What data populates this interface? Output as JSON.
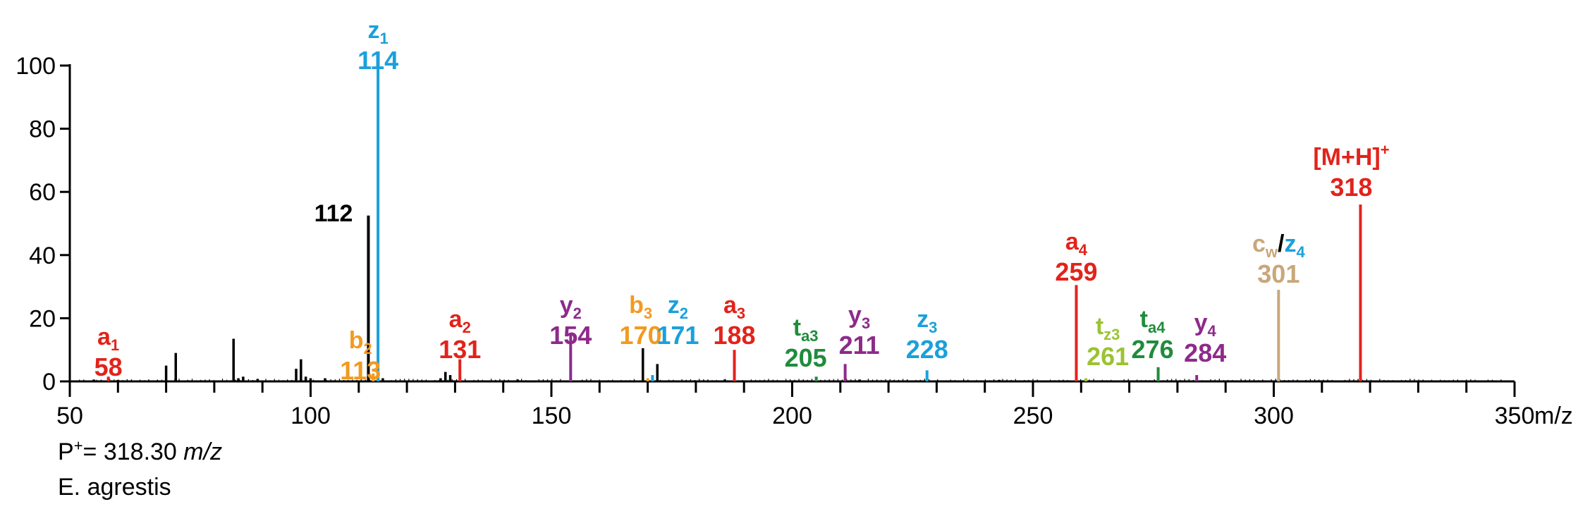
{
  "chart_data": {
    "type": "bar",
    "subtype": "mass-spectrum-stick",
    "xlim": [
      50,
      350
    ],
    "ylim": [
      0,
      100
    ],
    "x_ticks": [
      50,
      100,
      150,
      200,
      250,
      300,
      350
    ],
    "y_ticks": [
      0,
      20,
      40,
      60,
      80,
      100
    ],
    "x_unit": "m/z",
    "grid": false,
    "colors": {
      "a": "#e2231a",
      "b": "#f29a1f",
      "z": "#1ba0db",
      "y": "#8e2a8b",
      "t": "#1f8c3c",
      "tz": "#9cc233",
      "c": "#c8a77a",
      "unlabeled": "#000000"
    },
    "labeled_peaks": [
      {
        "mz": 58,
        "intensity": 1.5,
        "ion": "a",
        "sub": "1",
        "label": "58",
        "color": "#e2231a"
      },
      {
        "mz": 112,
        "intensity": 52.5,
        "ion": "",
        "sub": "",
        "label": "112",
        "color": "#000000"
      },
      {
        "mz": 113,
        "intensity": 2.5,
        "ion": "b",
        "sub": "2",
        "label": "113",
        "color": "#f29a1f"
      },
      {
        "mz": 114,
        "intensity": 100,
        "ion": "z",
        "sub": "1",
        "label": "114",
        "color": "#1ba0db"
      },
      {
        "mz": 131,
        "intensity": 7,
        "ion": "a",
        "sub": "2",
        "label": "131",
        "color": "#e2231a"
      },
      {
        "mz": 154,
        "intensity": 15,
        "ion": "y",
        "sub": "2",
        "label": "154",
        "color": "#8e2a8b"
      },
      {
        "mz": 170,
        "intensity": 1,
        "ion": "b",
        "sub": "3",
        "label": "170",
        "color": "#f29a1f"
      },
      {
        "mz": 171,
        "intensity": 2,
        "ion": "z",
        "sub": "2",
        "label": "171",
        "color": "#1ba0db"
      },
      {
        "mz": 188,
        "intensity": 10,
        "ion": "a",
        "sub": "3",
        "label": "188",
        "color": "#e2231a"
      },
      {
        "mz": 205,
        "intensity": 1.5,
        "ion": "t",
        "sub": "a3",
        "label": "205",
        "color": "#1f8c3c"
      },
      {
        "mz": 211,
        "intensity": 5.5,
        "ion": "y",
        "sub": "3",
        "label": "211",
        "color": "#8e2a8b"
      },
      {
        "mz": 228,
        "intensity": 3.5,
        "ion": "z",
        "sub": "3",
        "label": "228",
        "color": "#1ba0db"
      },
      {
        "mz": 259,
        "intensity": 30.5,
        "ion": "a",
        "sub": "4",
        "label": "259",
        "color": "#e2231a"
      },
      {
        "mz": 261,
        "intensity": 1,
        "ion": "t",
        "sub": "z3",
        "label": "261",
        "color": "#9cc233"
      },
      {
        "mz": 276,
        "intensity": 4.5,
        "ion": "t",
        "sub": "a4",
        "label": "276",
        "color": "#1f8c3c"
      },
      {
        "mz": 284,
        "intensity": 2,
        "ion": "y",
        "sub": "4",
        "label": "284",
        "color": "#8e2a8b"
      },
      {
        "mz": 301,
        "intensity": 29,
        "ion": "cw/z",
        "sub": "4",
        "label": "301",
        "color": "#c8a77a"
      },
      {
        "mz": 318,
        "intensity": 56,
        "ion": "[M+H]+",
        "sub": "",
        "label": "318",
        "color": "#e2231a"
      }
    ],
    "unlabeled_peaks": [
      {
        "mz": 55,
        "intensity": 0.6
      },
      {
        "mz": 60,
        "intensity": 0.5
      },
      {
        "mz": 70,
        "intensity": 5
      },
      {
        "mz": 72,
        "intensity": 9
      },
      {
        "mz": 84,
        "intensity": 13.5
      },
      {
        "mz": 85,
        "intensity": 1
      },
      {
        "mz": 86,
        "intensity": 1.5
      },
      {
        "mz": 89,
        "intensity": 0.8
      },
      {
        "mz": 97,
        "intensity": 4
      },
      {
        "mz": 98,
        "intensity": 7
      },
      {
        "mz": 99,
        "intensity": 1.5
      },
      {
        "mz": 100,
        "intensity": 1
      },
      {
        "mz": 103,
        "intensity": 1
      },
      {
        "mz": 115,
        "intensity": 1
      },
      {
        "mz": 127,
        "intensity": 1
      },
      {
        "mz": 128,
        "intensity": 3
      },
      {
        "mz": 129,
        "intensity": 2
      },
      {
        "mz": 143,
        "intensity": 0.6
      },
      {
        "mz": 169,
        "intensity": 10.5
      },
      {
        "mz": 172,
        "intensity": 5.5
      },
      {
        "mz": 186,
        "intensity": 0.6
      },
      {
        "mz": 214,
        "intensity": 0.6
      },
      {
        "mz": 243,
        "intensity": 0.5
      }
    ],
    "axis_label_x": "m/z"
  },
  "annotation": {
    "precursor_prefix": "P",
    "precursor_sup": "+",
    "precursor_value": "= 318.30",
    "precursor_unit": "m/z",
    "species": "E. agrestis"
  }
}
